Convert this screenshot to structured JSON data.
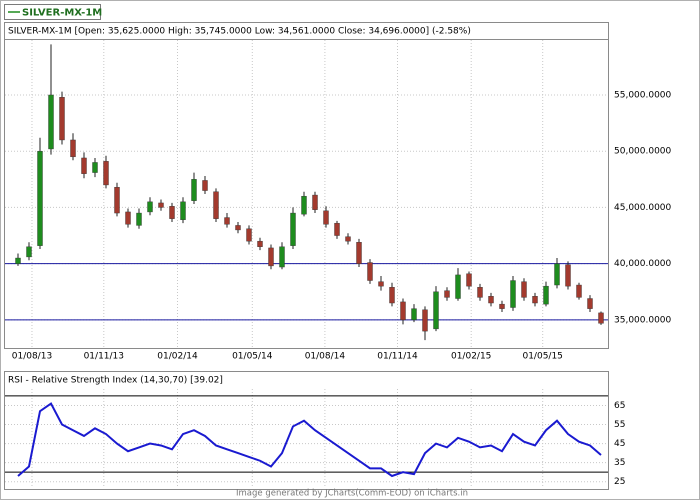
{
  "legend": "SILVER-MX-1M",
  "footer": "Image generated by JCharts(Comm-EOD) on iCharts.in",
  "chart_data": [
    {
      "type": "candlestick",
      "title": "SILVER-MX-1M [Open: 35,625.0000  High: 35,745.0000  Low: 34,561.0000  Close: 34,696.0000] (-2.58%)",
      "categories": [
        null,
        null,
        null,
        null,
        null,
        null,
        null,
        null,
        null,
        null,
        null,
        null,
        null,
        null,
        null,
        null,
        null,
        null,
        null,
        null,
        null,
        null,
        null,
        null,
        null,
        null,
        null,
        null,
        null,
        null,
        null,
        null,
        null,
        null,
        null,
        null,
        null,
        null,
        null,
        null,
        null,
        null,
        null,
        null,
        null,
        null,
        null,
        null,
        null,
        null,
        null,
        null,
        null,
        null
      ],
      "open": [
        40000,
        40600,
        41600,
        50200,
        54800,
        51000,
        49400,
        48100,
        49100,
        46800,
        44600,
        43400,
        44600,
        45400,
        45100,
        43900,
        45600,
        47400,
        46400,
        44100,
        43400,
        43100,
        42000,
        41400,
        39700,
        41600,
        44400,
        46100,
        44700,
        43600,
        42400,
        41900,
        40100,
        38400,
        37900,
        36600,
        35000,
        35900,
        34200,
        37600,
        36900,
        39100,
        37900,
        37100,
        36400,
        36100,
        38400,
        37100,
        36400,
        38100,
        39900,
        38100,
        36900,
        35625
      ],
      "high": [
        40900,
        41900,
        51200,
        59500,
        55300,
        51600,
        49900,
        49400,
        49600,
        47200,
        44900,
        44900,
        45900,
        45700,
        45400,
        45900,
        48100,
        47800,
        46700,
        44500,
        43700,
        43400,
        42300,
        41700,
        41900,
        45000,
        46400,
        46400,
        45100,
        43800,
        42700,
        42200,
        40400,
        38900,
        38300,
        36900,
        36400,
        36200,
        38000,
        37900,
        39600,
        39300,
        38200,
        37400,
        36700,
        38900,
        38700,
        37400,
        38400,
        40500,
        40200,
        38300,
        37200,
        35745
      ],
      "low": [
        39800,
        40300,
        41300,
        49700,
        50600,
        49200,
        47600,
        47700,
        46700,
        44200,
        43200,
        43100,
        44300,
        44700,
        43700,
        43600,
        45300,
        46200,
        43700,
        43200,
        42700,
        41700,
        41200,
        39500,
        39500,
        41300,
        44200,
        44500,
        43200,
        42200,
        41700,
        39700,
        38200,
        37600,
        36200,
        34600,
        34800,
        33200,
        34000,
        36700,
        36700,
        37700,
        36700,
        36200,
        35700,
        35800,
        36700,
        36200,
        36200,
        37800,
        37700,
        36800,
        35700,
        34561
      ],
      "close": [
        40500,
        41500,
        50000,
        55000,
        51000,
        49500,
        48000,
        49000,
        47000,
        44500,
        43500,
        44500,
        45500,
        45000,
        44000,
        45500,
        47500,
        46500,
        44000,
        43500,
        43000,
        42000,
        41500,
        39800,
        41500,
        44500,
        46000,
        44800,
        43500,
        42500,
        42000,
        40000,
        38500,
        38000,
        36500,
        35000,
        36000,
        34000,
        37500,
        37000,
        39000,
        38000,
        37000,
        36500,
        36000,
        38500,
        37000,
        36500,
        38000,
        40000,
        38000,
        37000,
        36000,
        34696
      ],
      "up_color": "#1e8c1e",
      "down_color": "#a33a2e",
      "xticks": [
        {
          "value": 1.27,
          "label": "01/08/13"
        },
        {
          "value": 7.8,
          "label": "01/11/13"
        },
        {
          "value": 14.5,
          "label": "01/02/14"
        },
        {
          "value": 21.3,
          "label": "01/05/14"
        },
        {
          "value": 27.9,
          "label": "01/08/14"
        },
        {
          "value": 34.5,
          "label": "01/11/14"
        },
        {
          "value": 41.2,
          "label": "01/02/15"
        },
        {
          "value": 47.7,
          "label": "01/05/15"
        }
      ],
      "ylim": [
        32500,
        59800
      ],
      "yticks": [
        {
          "value": 35000,
          "label": "35,000.0000"
        },
        {
          "value": 40000,
          "label": "40,000.0000"
        },
        {
          "value": 45000,
          "label": "45,000.0000"
        },
        {
          "value": 50000,
          "label": "50,000.0000"
        },
        {
          "value": 55000,
          "label": "55,000.0000"
        }
      ],
      "hlines": [
        40000,
        35000
      ],
      "hline_color": "#1a1aa0",
      "grid": true
    },
    {
      "type": "line",
      "title": "RSI - Relative Strength Index (14,30,70) [39.02]",
      "values": [
        28,
        33,
        62,
        66,
        55,
        52,
        49,
        53,
        50,
        45,
        41,
        43,
        45,
        44,
        42,
        50,
        52,
        49,
        44,
        42,
        40,
        38,
        36,
        33,
        40,
        54,
        57,
        52,
        48,
        44,
        40,
        36,
        32,
        32,
        28,
        30,
        29,
        40,
        45,
        43,
        48,
        46,
        43,
        44,
        41,
        50,
        46,
        44,
        52,
        57,
        50,
        46,
        44,
        39.02
      ],
      "color": "#1a1ad0",
      "ylim": [
        21.7,
        73.1
      ],
      "yticks": [
        25,
        35,
        45,
        55,
        65
      ],
      "hlines": [
        70,
        30
      ],
      "hline_color": "#000000",
      "grid": true
    }
  ]
}
